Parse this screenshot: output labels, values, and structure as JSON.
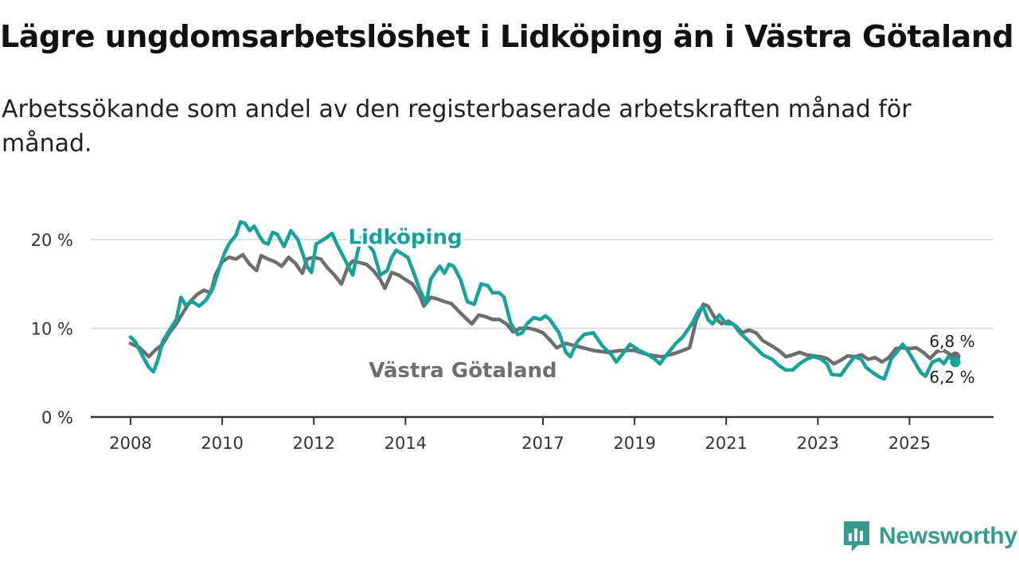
{
  "header": {
    "title": "Lägre ungdomsarbetslöshet i Lidköping än i Västra Götaland",
    "subtitle": "Arbetssökande som andel av den registerbaserade arbetskraften månad för månad."
  },
  "brand": {
    "name": "Newsworthy",
    "color": "#3a9a90"
  },
  "chart_data": {
    "type": "line",
    "title": "Lägre ungdomsarbetslöshet i Lidköping än i Västra Götaland",
    "subtitle": "Arbetssökande som andel av den registerbaserade arbetskraften månad för månad.",
    "xlabel": "",
    "ylabel": "",
    "x_range": [
      2008.0,
      2026.0
    ],
    "ylim": [
      0,
      22
    ],
    "grid": true,
    "y_ticks": [
      {
        "value": 0,
        "label": "0 %"
      },
      {
        "value": 10,
        "label": "10 %"
      },
      {
        "value": 20,
        "label": "20 %"
      }
    ],
    "x_ticks": [
      {
        "value": 2008.0,
        "label": "2008"
      },
      {
        "value": 2010.0,
        "label": "2010"
      },
      {
        "value": 2012.0,
        "label": "2012"
      },
      {
        "value": 2014.0,
        "label": "2014"
      },
      {
        "value": 2017.0,
        "label": "2017"
      },
      {
        "value": 2019.0,
        "label": "2019"
      },
      {
        "value": 2021.0,
        "label": "2021"
      },
      {
        "value": 2023.0,
        "label": "2023"
      },
      {
        "value": 2025.0,
        "label": "2025"
      }
    ],
    "series": [
      {
        "name": "Västra Götaland",
        "color": "#6e6e6e",
        "end_label": "6,8 %",
        "end_value": 6.8,
        "label_at": [
          2013.2,
          4.5
        ],
        "points": [
          [
            2008.0,
            8.3
          ],
          [
            2008.2,
            7.8
          ],
          [
            2008.4,
            6.8
          ],
          [
            2008.55,
            7.6
          ],
          [
            2008.7,
            8.2
          ],
          [
            2008.85,
            9.5
          ],
          [
            2009.0,
            10.5
          ],
          [
            2009.15,
            11.8
          ],
          [
            2009.3,
            13.0
          ],
          [
            2009.45,
            13.8
          ],
          [
            2009.6,
            14.3
          ],
          [
            2009.75,
            14.0
          ],
          [
            2009.85,
            16.0
          ],
          [
            2010.0,
            17.5
          ],
          [
            2010.15,
            18.0
          ],
          [
            2010.3,
            17.8
          ],
          [
            2010.45,
            18.3
          ],
          [
            2010.6,
            17.2
          ],
          [
            2010.75,
            16.5
          ],
          [
            2010.85,
            18.2
          ],
          [
            2011.0,
            17.8
          ],
          [
            2011.15,
            17.5
          ],
          [
            2011.3,
            17.0
          ],
          [
            2011.45,
            18.0
          ],
          [
            2011.6,
            17.3
          ],
          [
            2011.75,
            16.2
          ],
          [
            2011.85,
            17.8
          ],
          [
            2012.0,
            18.0
          ],
          [
            2012.15,
            17.8
          ],
          [
            2012.3,
            16.8
          ],
          [
            2012.45,
            16.0
          ],
          [
            2012.6,
            15.0
          ],
          [
            2012.75,
            17.0
          ],
          [
            2012.85,
            17.6
          ],
          [
            2013.0,
            17.4
          ],
          [
            2013.15,
            17.2
          ],
          [
            2013.3,
            16.5
          ],
          [
            2013.45,
            15.5
          ],
          [
            2013.55,
            14.5
          ],
          [
            2013.7,
            16.3
          ],
          [
            2013.85,
            16.0
          ],
          [
            2014.0,
            15.5
          ],
          [
            2014.15,
            15.0
          ],
          [
            2014.3,
            13.8
          ],
          [
            2014.4,
            12.5
          ],
          [
            2014.55,
            13.5
          ],
          [
            2014.7,
            13.3
          ],
          [
            2014.85,
            13.0
          ],
          [
            2015.0,
            12.8
          ],
          [
            2015.15,
            12.0
          ],
          [
            2015.3,
            11.2
          ],
          [
            2015.45,
            10.5
          ],
          [
            2015.6,
            11.5
          ],
          [
            2015.75,
            11.3
          ],
          [
            2015.9,
            11.0
          ],
          [
            2016.05,
            11.0
          ],
          [
            2016.2,
            10.5
          ],
          [
            2016.35,
            9.6
          ],
          [
            2016.5,
            10.0
          ],
          [
            2016.7,
            10.0
          ],
          [
            2016.85,
            9.8
          ],
          [
            2017.0,
            9.5
          ],
          [
            2017.15,
            8.7
          ],
          [
            2017.3,
            7.8
          ],
          [
            2017.5,
            8.3
          ],
          [
            2017.8,
            7.9
          ],
          [
            2018.1,
            7.5
          ],
          [
            2018.4,
            7.3
          ],
          [
            2018.7,
            7.5
          ],
          [
            2019.0,
            7.5
          ],
          [
            2019.3,
            7.0
          ],
          [
            2019.6,
            6.8
          ],
          [
            2019.9,
            7.2
          ],
          [
            2020.2,
            7.8
          ],
          [
            2020.35,
            11.0
          ],
          [
            2020.5,
            12.7
          ],
          [
            2020.6,
            12.5
          ],
          [
            2020.75,
            11.2
          ],
          [
            2020.9,
            10.5
          ],
          [
            2021.05,
            10.8
          ],
          [
            2021.2,
            10.3
          ],
          [
            2021.35,
            9.5
          ],
          [
            2021.5,
            9.8
          ],
          [
            2021.65,
            9.5
          ],
          [
            2021.8,
            8.6
          ],
          [
            2022.0,
            8.0
          ],
          [
            2022.15,
            7.5
          ],
          [
            2022.3,
            6.8
          ],
          [
            2022.45,
            7.0
          ],
          [
            2022.6,
            7.3
          ],
          [
            2022.75,
            7.0
          ],
          [
            2022.9,
            6.9
          ],
          [
            2023.05,
            6.8
          ],
          [
            2023.2,
            6.6
          ],
          [
            2023.35,
            6.0
          ],
          [
            2023.5,
            6.4
          ],
          [
            2023.65,
            6.9
          ],
          [
            2023.8,
            6.8
          ],
          [
            2023.95,
            7.0
          ],
          [
            2024.1,
            6.5
          ],
          [
            2024.25,
            6.7
          ],
          [
            2024.4,
            6.2
          ],
          [
            2024.55,
            6.7
          ],
          [
            2024.7,
            7.7
          ],
          [
            2024.85,
            7.8
          ],
          [
            2025.0,
            7.7
          ],
          [
            2025.15,
            7.8
          ],
          [
            2025.3,
            7.3
          ],
          [
            2025.45,
            6.6
          ],
          [
            2025.6,
            7.4
          ],
          [
            2025.75,
            7.5
          ],
          [
            2025.9,
            7.0
          ],
          [
            2026.0,
            6.8
          ]
        ]
      },
      {
        "name": "Lidköping",
        "color": "#17a398",
        "end_label": "6,2 %",
        "end_value": 6.2,
        "label_at": [
          2012.75,
          19.5
        ],
        "points": [
          [
            2008.0,
            9.0
          ],
          [
            2008.1,
            8.5
          ],
          [
            2008.2,
            7.5
          ],
          [
            2008.3,
            6.5
          ],
          [
            2008.4,
            5.6
          ],
          [
            2008.5,
            5.1
          ],
          [
            2008.6,
            6.5
          ],
          [
            2008.7,
            8.5
          ],
          [
            2008.85,
            9.8
          ],
          [
            2009.0,
            11.0
          ],
          [
            2009.1,
            13.5
          ],
          [
            2009.2,
            12.6
          ],
          [
            2009.35,
            13.0
          ],
          [
            2009.5,
            12.5
          ],
          [
            2009.65,
            13.2
          ],
          [
            2009.8,
            14.5
          ],
          [
            2009.95,
            17.0
          ],
          [
            2010.05,
            18.5
          ],
          [
            2010.15,
            19.5
          ],
          [
            2010.3,
            20.5
          ],
          [
            2010.4,
            22.0
          ],
          [
            2010.5,
            21.8
          ],
          [
            2010.6,
            21.0
          ],
          [
            2010.7,
            21.5
          ],
          [
            2010.8,
            20.5
          ],
          [
            2010.9,
            19.7
          ],
          [
            2011.0,
            19.5
          ],
          [
            2011.1,
            20.8
          ],
          [
            2011.2,
            20.6
          ],
          [
            2011.35,
            19.2
          ],
          [
            2011.5,
            21.0
          ],
          [
            2011.65,
            20.0
          ],
          [
            2011.75,
            18.5
          ],
          [
            2011.85,
            17.0
          ],
          [
            2011.95,
            16.3
          ],
          [
            2012.05,
            19.5
          ],
          [
            2012.15,
            19.8
          ],
          [
            2012.3,
            20.3
          ],
          [
            2012.4,
            20.7
          ],
          [
            2012.5,
            19.5
          ],
          [
            2012.6,
            18.5
          ],
          [
            2012.75,
            17.0
          ],
          [
            2012.85,
            16.0
          ],
          [
            2012.95,
            18.5
          ],
          [
            2013.05,
            20.5
          ],
          [
            2013.1,
            20.0
          ],
          [
            2013.3,
            18.7
          ],
          [
            2013.45,
            16.0
          ],
          [
            2013.6,
            16.5
          ],
          [
            2013.7,
            18.0
          ],
          [
            2013.8,
            18.8
          ],
          [
            2014.05,
            18.0
          ],
          [
            2014.2,
            16.0
          ],
          [
            2014.3,
            14.5
          ],
          [
            2014.45,
            12.8
          ],
          [
            2014.55,
            15.5
          ],
          [
            2014.65,
            16.3
          ],
          [
            2014.75,
            17.0
          ],
          [
            2014.85,
            16.2
          ],
          [
            2014.95,
            17.2
          ],
          [
            2015.05,
            17.0
          ],
          [
            2015.2,
            15.5
          ],
          [
            2015.35,
            13.0
          ],
          [
            2015.5,
            12.7
          ],
          [
            2015.65,
            15.0
          ],
          [
            2015.8,
            14.8
          ],
          [
            2015.9,
            14.0
          ],
          [
            2016.05,
            14.0
          ],
          [
            2016.15,
            13.5
          ],
          [
            2016.3,
            10.5
          ],
          [
            2016.45,
            9.3
          ],
          [
            2016.55,
            9.5
          ],
          [
            2016.65,
            10.5
          ],
          [
            2016.8,
            11.2
          ],
          [
            2016.95,
            11.0
          ],
          [
            2017.05,
            11.4
          ],
          [
            2017.15,
            11.0
          ],
          [
            2017.35,
            9.5
          ],
          [
            2017.5,
            7.3
          ],
          [
            2017.6,
            6.8
          ],
          [
            2017.75,
            8.5
          ],
          [
            2017.9,
            9.3
          ],
          [
            2018.1,
            9.5
          ],
          [
            2018.3,
            8.0
          ],
          [
            2018.5,
            7.0
          ],
          [
            2018.6,
            6.2
          ],
          [
            2018.75,
            7.2
          ],
          [
            2018.9,
            8.2
          ],
          [
            2019.1,
            7.5
          ],
          [
            2019.3,
            7.0
          ],
          [
            2019.45,
            6.5
          ],
          [
            2019.55,
            6.0
          ],
          [
            2019.7,
            7.0
          ],
          [
            2019.9,
            8.3
          ],
          [
            2020.05,
            9.0
          ],
          [
            2020.25,
            10.5
          ],
          [
            2020.4,
            12.0
          ],
          [
            2020.5,
            12.4
          ],
          [
            2020.6,
            11.0
          ],
          [
            2020.7,
            10.5
          ],
          [
            2020.85,
            11.5
          ],
          [
            2021.0,
            10.5
          ],
          [
            2021.15,
            10.5
          ],
          [
            2021.3,
            9.5
          ],
          [
            2021.4,
            9.0
          ],
          [
            2021.6,
            8.0
          ],
          [
            2021.8,
            7.0
          ],
          [
            2022.0,
            6.5
          ],
          [
            2022.15,
            5.8
          ],
          [
            2022.3,
            5.3
          ],
          [
            2022.45,
            5.3
          ],
          [
            2022.6,
            6.0
          ],
          [
            2022.75,
            6.5
          ],
          [
            2022.9,
            6.8
          ],
          [
            2023.05,
            6.6
          ],
          [
            2023.2,
            6.0
          ],
          [
            2023.3,
            4.8
          ],
          [
            2023.5,
            4.7
          ],
          [
            2023.65,
            5.8
          ],
          [
            2023.8,
            6.8
          ],
          [
            2023.95,
            6.5
          ],
          [
            2024.05,
            5.6
          ],
          [
            2024.2,
            5.0
          ],
          [
            2024.35,
            4.5
          ],
          [
            2024.45,
            4.3
          ],
          [
            2024.6,
            6.5
          ],
          [
            2024.75,
            7.5
          ],
          [
            2024.85,
            8.2
          ],
          [
            2024.95,
            7.6
          ],
          [
            2025.1,
            6.3
          ],
          [
            2025.25,
            5.0
          ],
          [
            2025.35,
            4.6
          ],
          [
            2025.5,
            6.2
          ],
          [
            2025.65,
            6.5
          ],
          [
            2025.75,
            6.0
          ],
          [
            2025.85,
            6.8
          ],
          [
            2025.95,
            6.5
          ],
          [
            2026.0,
            6.2
          ]
        ]
      }
    ]
  }
}
